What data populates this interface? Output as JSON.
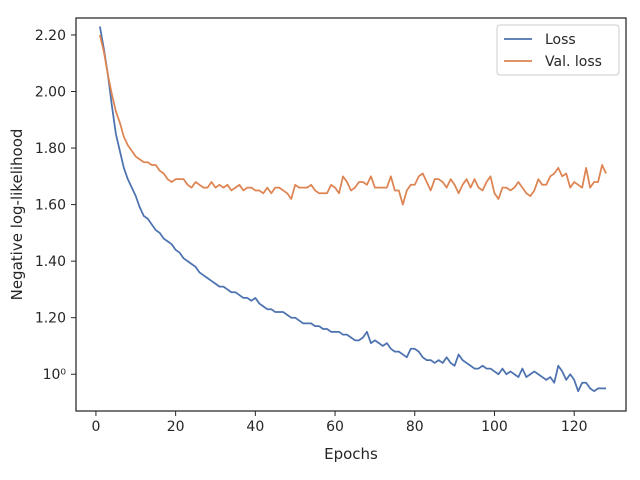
{
  "chart_data": {
    "type": "line",
    "title": "",
    "xlabel": "Epochs",
    "ylabel": "Negative log-likelihood",
    "xlim": [
      -5,
      133
    ],
    "ylim": [
      0.87,
      2.26
    ],
    "x_ticks": [
      0,
      20,
      40,
      60,
      80,
      100,
      120
    ],
    "x_tick_labels": [
      "0",
      "20",
      "40",
      "60",
      "80",
      "100",
      "120"
    ],
    "y_ticks": [
      1.0,
      1.2,
      1.4,
      1.6,
      1.8,
      2.0,
      2.2
    ],
    "y_tick_labels": [
      "10⁰",
      "1.20",
      "1.40",
      "1.60",
      "1.80",
      "2.00",
      "2.20"
    ],
    "legend_position": "top-right",
    "grid": false,
    "series": [
      {
        "name": "Loss",
        "color": "#4c72b0",
        "x": [
          1,
          2,
          3,
          4,
          5,
          6,
          7,
          8,
          9,
          10,
          11,
          12,
          13,
          14,
          15,
          16,
          17,
          18,
          19,
          20,
          21,
          22,
          23,
          24,
          25,
          26,
          27,
          28,
          29,
          30,
          31,
          32,
          33,
          34,
          35,
          36,
          37,
          38,
          39,
          40,
          41,
          42,
          43,
          44,
          45,
          46,
          47,
          48,
          49,
          50,
          51,
          52,
          53,
          54,
          55,
          56,
          57,
          58,
          59,
          60,
          61,
          62,
          63,
          64,
          65,
          66,
          67,
          68,
          69,
          70,
          71,
          72,
          73,
          74,
          75,
          76,
          77,
          78,
          79,
          80,
          81,
          82,
          83,
          84,
          85,
          86,
          87,
          88,
          89,
          90,
          91,
          92,
          93,
          94,
          95,
          96,
          97,
          98,
          99,
          100,
          101,
          102,
          103,
          104,
          105,
          106,
          107,
          108,
          109,
          110,
          111,
          112,
          113,
          114,
          115,
          116,
          117,
          118,
          119,
          120,
          121,
          122,
          123,
          124,
          125,
          126,
          127,
          128
        ],
        "values": [
          2.23,
          2.15,
          2.06,
          1.95,
          1.85,
          1.79,
          1.73,
          1.69,
          1.66,
          1.63,
          1.59,
          1.56,
          1.55,
          1.53,
          1.51,
          1.5,
          1.48,
          1.47,
          1.46,
          1.44,
          1.43,
          1.41,
          1.4,
          1.39,
          1.38,
          1.36,
          1.35,
          1.34,
          1.33,
          1.32,
          1.31,
          1.31,
          1.3,
          1.29,
          1.29,
          1.28,
          1.27,
          1.27,
          1.26,
          1.27,
          1.25,
          1.24,
          1.23,
          1.23,
          1.22,
          1.22,
          1.22,
          1.21,
          1.2,
          1.2,
          1.19,
          1.18,
          1.18,
          1.18,
          1.17,
          1.17,
          1.16,
          1.16,
          1.15,
          1.15,
          1.15,
          1.14,
          1.14,
          1.13,
          1.12,
          1.12,
          1.13,
          1.15,
          1.11,
          1.12,
          1.11,
          1.1,
          1.11,
          1.09,
          1.08,
          1.08,
          1.07,
          1.06,
          1.09,
          1.09,
          1.08,
          1.06,
          1.05,
          1.05,
          1.04,
          1.05,
          1.04,
          1.06,
          1.04,
          1.03,
          1.07,
          1.05,
          1.04,
          1.03,
          1.02,
          1.02,
          1.03,
          1.02,
          1.02,
          1.01,
          1.0,
          1.02,
          1.0,
          1.01,
          1.0,
          0.99,
          1.02,
          0.99,
          1.0,
          1.01,
          1.0,
          0.99,
          0.98,
          0.99,
          0.97,
          1.03,
          1.01,
          0.98,
          1.0,
          0.98,
          0.94,
          0.97,
          0.97,
          0.95,
          0.94,
          0.95,
          0.95,
          0.95
        ]
      },
      {
        "name": "Val. loss",
        "color": "#dd8452",
        "x": [
          1,
          2,
          3,
          4,
          5,
          6,
          7,
          8,
          9,
          10,
          11,
          12,
          13,
          14,
          15,
          16,
          17,
          18,
          19,
          20,
          21,
          22,
          23,
          24,
          25,
          26,
          27,
          28,
          29,
          30,
          31,
          32,
          33,
          34,
          35,
          36,
          37,
          38,
          39,
          40,
          41,
          42,
          43,
          44,
          45,
          46,
          47,
          48,
          49,
          50,
          51,
          52,
          53,
          54,
          55,
          56,
          57,
          58,
          59,
          60,
          61,
          62,
          63,
          64,
          65,
          66,
          67,
          68,
          69,
          70,
          71,
          72,
          73,
          74,
          75,
          76,
          77,
          78,
          79,
          80,
          81,
          82,
          83,
          84,
          85,
          86,
          87,
          88,
          89,
          90,
          91,
          92,
          93,
          94,
          95,
          96,
          97,
          98,
          99,
          100,
          101,
          102,
          103,
          104,
          105,
          106,
          107,
          108,
          109,
          110,
          111,
          112,
          113,
          114,
          115,
          116,
          117,
          118,
          119,
          120,
          121,
          122,
          123,
          124,
          125,
          126,
          127,
          128
        ],
        "values": [
          2.2,
          2.14,
          2.06,
          1.99,
          1.93,
          1.89,
          1.84,
          1.81,
          1.79,
          1.77,
          1.76,
          1.75,
          1.75,
          1.74,
          1.74,
          1.72,
          1.71,
          1.69,
          1.68,
          1.69,
          1.69,
          1.69,
          1.67,
          1.66,
          1.68,
          1.67,
          1.66,
          1.66,
          1.68,
          1.66,
          1.67,
          1.66,
          1.67,
          1.65,
          1.66,
          1.67,
          1.65,
          1.66,
          1.66,
          1.65,
          1.65,
          1.64,
          1.66,
          1.64,
          1.66,
          1.66,
          1.65,
          1.64,
          1.62,
          1.67,
          1.66,
          1.66,
          1.66,
          1.67,
          1.65,
          1.64,
          1.64,
          1.64,
          1.67,
          1.66,
          1.64,
          1.7,
          1.68,
          1.65,
          1.66,
          1.68,
          1.68,
          1.67,
          1.7,
          1.66,
          1.66,
          1.66,
          1.66,
          1.7,
          1.65,
          1.65,
          1.6,
          1.65,
          1.67,
          1.67,
          1.7,
          1.71,
          1.68,
          1.65,
          1.69,
          1.69,
          1.68,
          1.66,
          1.69,
          1.67,
          1.64,
          1.67,
          1.69,
          1.66,
          1.69,
          1.66,
          1.65,
          1.68,
          1.7,
          1.64,
          1.62,
          1.66,
          1.66,
          1.65,
          1.66,
          1.68,
          1.66,
          1.64,
          1.63,
          1.65,
          1.69,
          1.67,
          1.67,
          1.7,
          1.71,
          1.73,
          1.7,
          1.71,
          1.66,
          1.68,
          1.67,
          1.66,
          1.73,
          1.66,
          1.68,
          1.68,
          1.74,
          1.71
        ]
      }
    ]
  }
}
